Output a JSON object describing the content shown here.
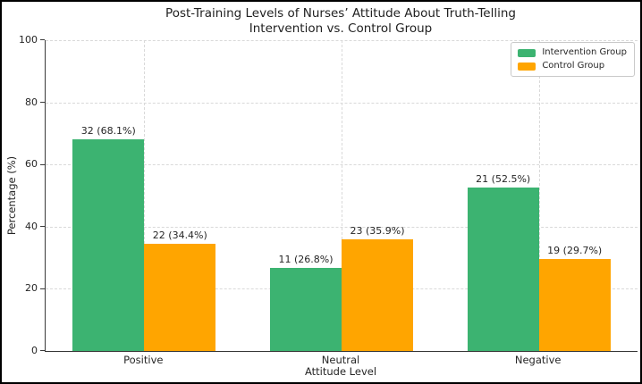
{
  "chart_data": {
    "type": "bar",
    "title": "Post-Training Levels of Nurses’ Attitude About Truth-Telling Intervention vs. Control Group",
    "title_lines": [
      "Post-Training Levels of Nurses’ Attitude About Truth-Telling",
      "Intervention vs. Control Group"
    ],
    "xlabel": "Attitude Level",
    "ylabel": "Percentage (%)",
    "categories": [
      "Positive",
      "Neutral",
      "Negative"
    ],
    "series": [
      {
        "name": "Intervention Group",
        "color": "#3cb371",
        "counts": [
          32,
          11,
          21
        ],
        "values": [
          68.1,
          26.8,
          52.5
        ],
        "labels": [
          "32 (68.1%)",
          "11 (26.8%)",
          "21 (52.5%)"
        ]
      },
      {
        "name": "Control Group",
        "color": "#ffa500",
        "counts": [
          22,
          23,
          19
        ],
        "values": [
          34.4,
          35.9,
          29.7
        ],
        "labels": [
          "22 (34.4%)",
          "23 (35.9%)",
          "19 (29.7%)"
        ]
      }
    ],
    "ylim": [
      0,
      100
    ],
    "yticks": [
      0,
      20,
      40,
      60,
      80,
      100
    ],
    "grid": {
      "style": "dashed",
      "horizontal": true,
      "vertical": true
    },
    "legend": {
      "position": "upper right",
      "entries": [
        "Intervention Group",
        "Control Group"
      ]
    }
  }
}
